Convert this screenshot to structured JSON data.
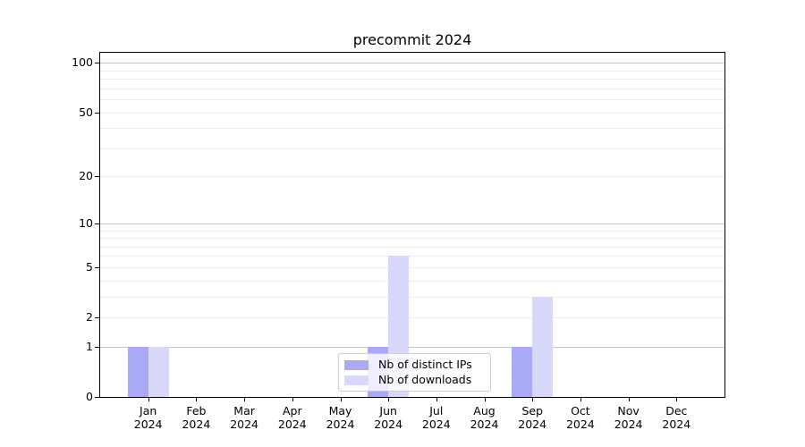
{
  "chart_data": {
    "type": "bar",
    "title": "precommit 2024",
    "categories": [
      "Jan",
      "Feb",
      "Mar",
      "Apr",
      "May",
      "Jun",
      "Jul",
      "Aug",
      "Sep",
      "Oct",
      "Nov",
      "Dec"
    ],
    "category_sublabel": "2024",
    "series": [
      {
        "name": "Nb of distinct IPs",
        "color": "#a9a9f7",
        "values": [
          1,
          0,
          0,
          0,
          0,
          1,
          0,
          0,
          1,
          0,
          0,
          0
        ]
      },
      {
        "name": "Nb of downloads",
        "color": "#d8d8fa",
        "values": [
          1,
          0,
          0,
          0,
          0,
          6,
          0,
          0,
          3,
          0,
          0,
          0
        ]
      }
    ],
    "y_axis": {
      "scale": "log1p",
      "tick_values": [
        0,
        1,
        2,
        5,
        10,
        20,
        50,
        100
      ],
      "major_grid_values": [
        1,
        10,
        100
      ],
      "minor_grid_values": [
        2,
        3,
        4,
        5,
        6,
        7,
        8,
        9,
        20,
        30,
        40,
        50,
        60,
        70,
        80,
        90
      ],
      "ylim": [
        0,
        115
      ]
    },
    "legend": {
      "position": "lower center"
    },
    "grid": true
  },
  "colors": {
    "major_grid": "#c6c6c6",
    "minor_grid": "#ececec",
    "spine": "#000000",
    "text": "#000000",
    "legend_border": "#cccccc"
  }
}
